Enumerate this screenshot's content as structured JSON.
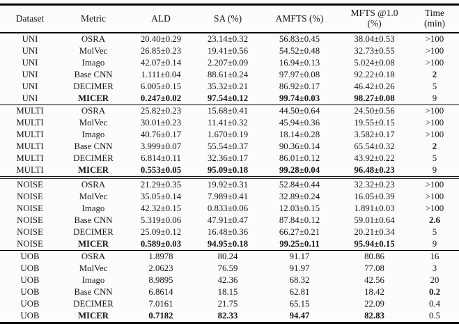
{
  "colors": {
    "background": "#fcfcfc",
    "text": "#161616",
    "rule": "#000000"
  },
  "table": {
    "columns": [
      {
        "label": "Dataset",
        "sub": ""
      },
      {
        "label": "Metric",
        "sub": ""
      },
      {
        "label": "ALD",
        "sub": ""
      },
      {
        "label": "SA (%)",
        "sub": ""
      },
      {
        "label": "AMFTS (%)",
        "sub": ""
      },
      {
        "label": "MFTS @1.0",
        "sub": "(%)"
      },
      {
        "label": "Time",
        "sub": "(min)"
      }
    ],
    "groups": [
      {
        "dataset": "UNI",
        "divider": "single",
        "rows": [
          {
            "cells": [
              "UNI",
              "OSRA",
              "20.40±0.29",
              "23.14±0.32",
              "56.83±0.45",
              "38.04±0.53",
              ">100"
            ],
            "bold": []
          },
          {
            "cells": [
              "UNI",
              "MolVec",
              "26.85±0.23",
              "19.41±0.56",
              "54.52±0.48",
              "32.73±0.55",
              ">100"
            ],
            "bold": []
          },
          {
            "cells": [
              "UNI",
              "Imago",
              "42.07±0.14",
              "2.207±0.09",
              "16.94±0.13",
              "5.024±0.08",
              ">100"
            ],
            "bold": []
          },
          {
            "cells": [
              "UNI",
              "Base CNN",
              "1.111±0.04",
              "88.61±0.24",
              "97.97±0.08",
              "92.22±0.18",
              "2"
            ],
            "bold": [
              6
            ]
          },
          {
            "cells": [
              "UNI",
              "DECIMER",
              "6.005±0.15",
              "35.32±0.21",
              "86.92±0.17",
              "46.42±0.26",
              "5"
            ],
            "bold": []
          },
          {
            "cells": [
              "UNI",
              "MICER",
              "0.247±0.02",
              "97.54±0.12",
              "99.74±0.03",
              "98.27±0.08",
              "9"
            ],
            "bold": [
              1,
              2,
              3,
              4,
              5
            ]
          }
        ]
      },
      {
        "dataset": "MULTI",
        "divider": "double",
        "rows": [
          {
            "cells": [
              "MULTI",
              "OSRA",
              "25.82±0.23",
              "15.68±0.41",
              "44.50±0.64",
              "24.50±0.56",
              ">100"
            ],
            "bold": []
          },
          {
            "cells": [
              "MULTI",
              "MolVec",
              "30.01±0.23",
              "11.41±0.32",
              "45.94±0.36",
              "19.55±0.15",
              ">100"
            ],
            "bold": []
          },
          {
            "cells": [
              "MULTI",
              "Imago",
              "40.76±0.17",
              "1.670±0.19",
              "18.14±0.28",
              "3.582±0.17",
              ">100"
            ],
            "bold": []
          },
          {
            "cells": [
              "MULTI",
              "Base CNN",
              "3.999±0.07",
              "55.54±0.37",
              "90.36±0.14",
              "65.54±0.32",
              "2"
            ],
            "bold": [
              6
            ]
          },
          {
            "cells": [
              "MULTI",
              "DECIMER",
              "6.814±0.11",
              "32.36±0.17",
              "86.01±0.12",
              "43.92±0.22",
              "5"
            ],
            "bold": []
          },
          {
            "cells": [
              "MULTI",
              "MICER",
              "0.553±0.05",
              "95.09±0.18",
              "99.28±0.04",
              "96.48±0.23",
              "9"
            ],
            "bold": [
              1,
              2,
              3,
              4,
              5
            ]
          }
        ]
      },
      {
        "dataset": "NOISE",
        "divider": "single",
        "rows": [
          {
            "cells": [
              "NOISE",
              "OSRA",
              "21.29±0.35",
              "19.92±0.31",
              "52.84±0.44",
              "32.32±0.23",
              ">100"
            ],
            "bold": []
          },
          {
            "cells": [
              "NOISE",
              "MolVec",
              "35.05±0.14",
              "7.989±0.41",
              "32.89±0.24",
              "16.05±0.39",
              ">100"
            ],
            "bold": []
          },
          {
            "cells": [
              "NOISE",
              "Imago",
              "42.32±0.15",
              "0.833±0.06",
              "12.03±0.15",
              "1.891±0.03",
              ">100"
            ],
            "bold": []
          },
          {
            "cells": [
              "NOISE",
              "Base CNN",
              "5.319±0.06",
              "47.91±0.47",
              "87.84±0.12",
              "59.01±0.64",
              "2.6"
            ],
            "bold": [
              6
            ]
          },
          {
            "cells": [
              "NOISE",
              "DECIMER",
              "25.09±0.12",
              "16.48±0.36",
              "66.27±0.21",
              "20.21±0.34",
              "5"
            ],
            "bold": []
          },
          {
            "cells": [
              "NOISE",
              "MICER",
              "0.589±0.03",
              "94.95±0.18",
              "99.25±0.11",
              "95.94±0.15",
              "9"
            ],
            "bold": [
              1,
              2,
              3,
              4,
              5
            ]
          }
        ]
      },
      {
        "dataset": "UOB",
        "divider": "none",
        "rows": [
          {
            "cells": [
              "UOB",
              "OSRA",
              "1.8978",
              "80.24",
              "91.17",
              "80.86",
              "16"
            ],
            "bold": []
          },
          {
            "cells": [
              "UOB",
              "MolVec",
              "2.0623",
              "76.59",
              "91.97",
              "77.08",
              "3"
            ],
            "bold": []
          },
          {
            "cells": [
              "UOB",
              "Imago",
              "8.9895",
              "42.36",
              "68.32",
              "42.56",
              "20"
            ],
            "bold": []
          },
          {
            "cells": [
              "UOB",
              "Base CNN",
              "6.8614",
              "18.15",
              "62.81",
              "18.42",
              "0.2"
            ],
            "bold": [
              6
            ]
          },
          {
            "cells": [
              "UOB",
              "DECIMER",
              "7.0161",
              "21.75",
              "65.15",
              "22.09",
              "0.4"
            ],
            "bold": []
          },
          {
            "cells": [
              "UOB",
              "MICER",
              "0.7182",
              "82.33",
              "94.47",
              "82.83",
              "0.5"
            ],
            "bold": [
              1,
              2,
              3,
              4,
              5
            ]
          }
        ]
      }
    ]
  }
}
